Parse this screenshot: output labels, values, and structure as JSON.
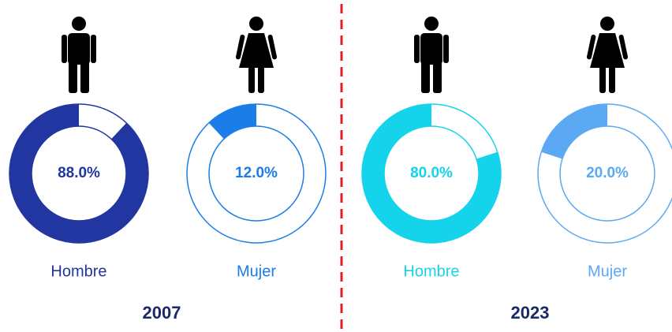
{
  "years": [
    "2007",
    "2023"
  ],
  "chart_data": [
    {
      "type": "donut",
      "title": "Hombre",
      "values": [
        88.0
      ],
      "value_labels": [
        "88.0%"
      ],
      "color": "#2136a1"
    },
    {
      "type": "donut",
      "title": "Mujer",
      "values": [
        12.0
      ],
      "value_labels": [
        "12.0%"
      ],
      "color": "#1a7de8"
    },
    {
      "type": "donut",
      "title": "Hombre",
      "values": [
        80.0
      ],
      "value_labels": [
        "80.0%"
      ],
      "color": "#14d3ea"
    },
    {
      "type": "donut",
      "title": "Mujer",
      "values": [
        20.0
      ],
      "value_labels": [
        "20.0%"
      ],
      "color": "#5ba9f2"
    }
  ]
}
